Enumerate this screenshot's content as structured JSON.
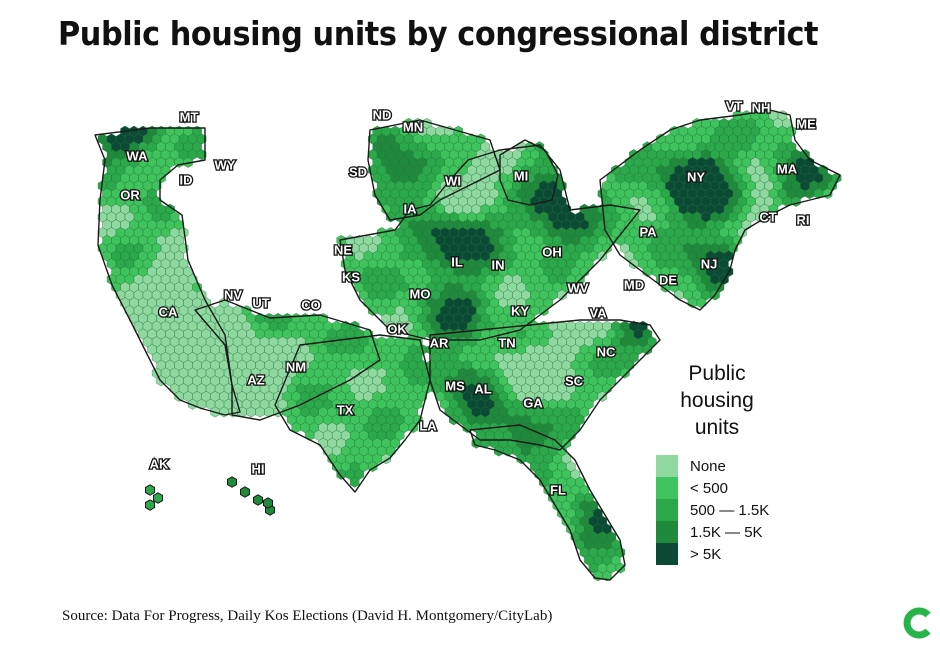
{
  "title": "Public housing units by congressional district",
  "source": "Source: Data For Progress, Daily Kos Elections (David H. Montgomery/CityLab)",
  "legend": {
    "title_lines": [
      "Public",
      "housing",
      "units"
    ],
    "items": [
      {
        "label": "None",
        "color": "#8fd9a0"
      },
      {
        "label": "< 500",
        "color": "#3fc35c"
      },
      {
        "label": "500 — 1.5K",
        "color": "#2ba84a"
      },
      {
        "label": "1.5K — 5K",
        "color": "#208a3c"
      },
      {
        "label": "> 5K",
        "color": "#0b4a34"
      }
    ]
  },
  "colors": {
    "none": "#8fd9a0",
    "lt500": "#3fc35c",
    "r500_1500": "#2ba84a",
    "r1500_5000": "#208a3c",
    "gt5000": "#0b4a34",
    "border": "#1a1a1a",
    "logo": "#27b24a"
  },
  "state_labels": [
    "MT",
    "ND",
    "MN",
    "WA",
    "WY",
    "ID",
    "OR",
    "SD",
    "WI",
    "MI",
    "VT",
    "NH",
    "ME",
    "MA",
    "NY",
    "CT",
    "RI",
    "PA",
    "NJ",
    "IA",
    "NE",
    "IL",
    "IN",
    "OH",
    "KS",
    "MO",
    "NV",
    "UT",
    "CO",
    "CA",
    "KY",
    "WV",
    "MD",
    "DE",
    "VA",
    "OK",
    "AR",
    "TN",
    "NC",
    "AZ",
    "NM",
    "MS",
    "AL",
    "SC",
    "TX",
    "GA",
    "LA",
    "AK",
    "HI",
    "FL"
  ],
  "logo": {
    "name": "citylab-logo"
  }
}
